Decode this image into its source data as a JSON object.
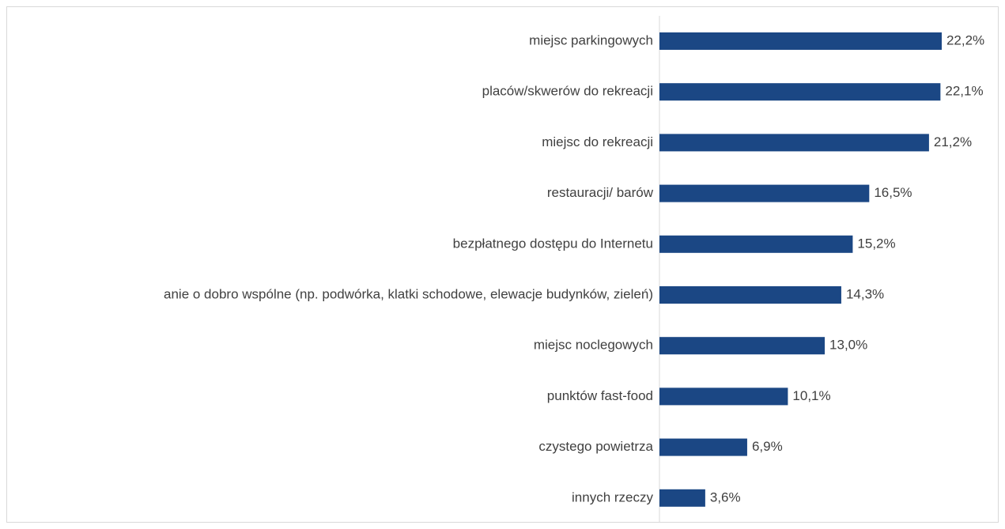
{
  "chart_data": {
    "type": "bar",
    "orientation": "horizontal",
    "categories": [
      "miejsc parkingowych",
      "placów/skwerów do rekreacji",
      "miejsc do rekreacji",
      "restauracji/ barów",
      "bezpłatnego dostępu do Internetu",
      "anie o dobro wspólne (np. podwórka, klatki schodowe, elewacje budynków, zieleń)",
      "miejsc noclegowych",
      "punktów fast-food",
      "czystego powietrza",
      "innych rzeczy"
    ],
    "values": [
      22.2,
      22.1,
      21.2,
      16.5,
      15.2,
      14.3,
      13.0,
      10.1,
      6.9,
      3.6
    ],
    "value_labels": [
      "22,2%",
      "22,1%",
      "21,2%",
      "16,5%",
      "15,2%",
      "14,3%",
      "13,0%",
      "10,1%",
      "6,9%",
      "3,6%"
    ],
    "color": "#1b4784",
    "xlim": [
      0,
      25
    ]
  }
}
